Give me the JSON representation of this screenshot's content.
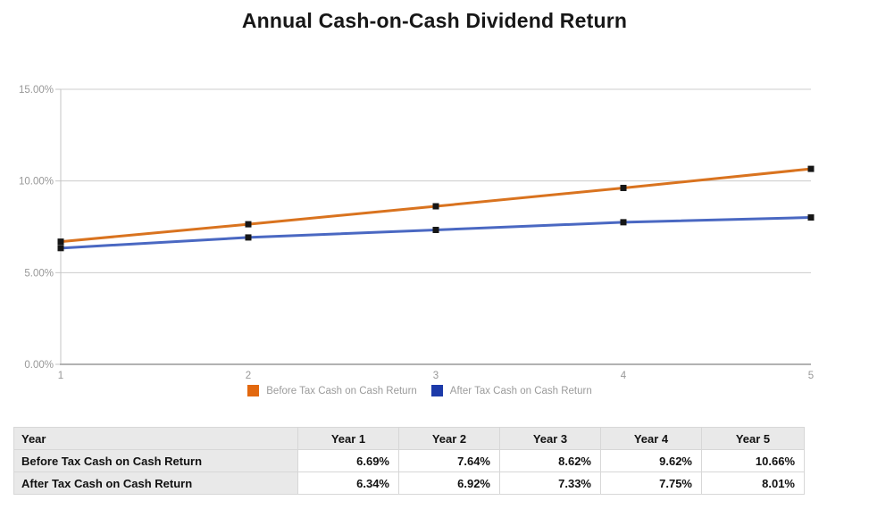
{
  "title": "Annual Cash-on-Cash Dividend Return",
  "chart_data": {
    "type": "line",
    "categories": [
      "1",
      "2",
      "3",
      "4",
      "5"
    ],
    "series": [
      {
        "name": "Before Tax Cash on Cash Return",
        "color": "#d9731f",
        "legend_color": "#e2680f",
        "values": [
          6.69,
          7.64,
          8.62,
          9.62,
          10.66
        ]
      },
      {
        "name": "After Tax Cash on Cash Return",
        "color": "#4a68c2",
        "legend_color": "#1c3aa9",
        "values": [
          6.34,
          6.92,
          7.33,
          7.75,
          8.01
        ]
      }
    ],
    "y_ticks": [
      {
        "value": 0,
        "label": "0.00%"
      },
      {
        "value": 5,
        "label": "5.00%"
      },
      {
        "value": 10,
        "label": "10.00%"
      },
      {
        "value": 15,
        "label": "15.00%"
      }
    ],
    "ylim": [
      0,
      15
    ],
    "xlabel": "",
    "ylabel": "",
    "grid": true,
    "legend_position": "bottom",
    "marker": "square",
    "marker_color": "#161616"
  },
  "table": {
    "columns": [
      "Year",
      "Year 1",
      "Year 2",
      "Year 3",
      "Year 4",
      "Year 5"
    ],
    "rows": [
      {
        "label": "Before Tax Cash on Cash Return",
        "values": [
          "6.69%",
          "7.64%",
          "8.62%",
          "9.62%",
          "10.66%"
        ]
      },
      {
        "label": "After Tax Cash on Cash Return",
        "values": [
          "6.34%",
          "6.92%",
          "7.33%",
          "7.75%",
          "8.01%"
        ]
      }
    ]
  }
}
